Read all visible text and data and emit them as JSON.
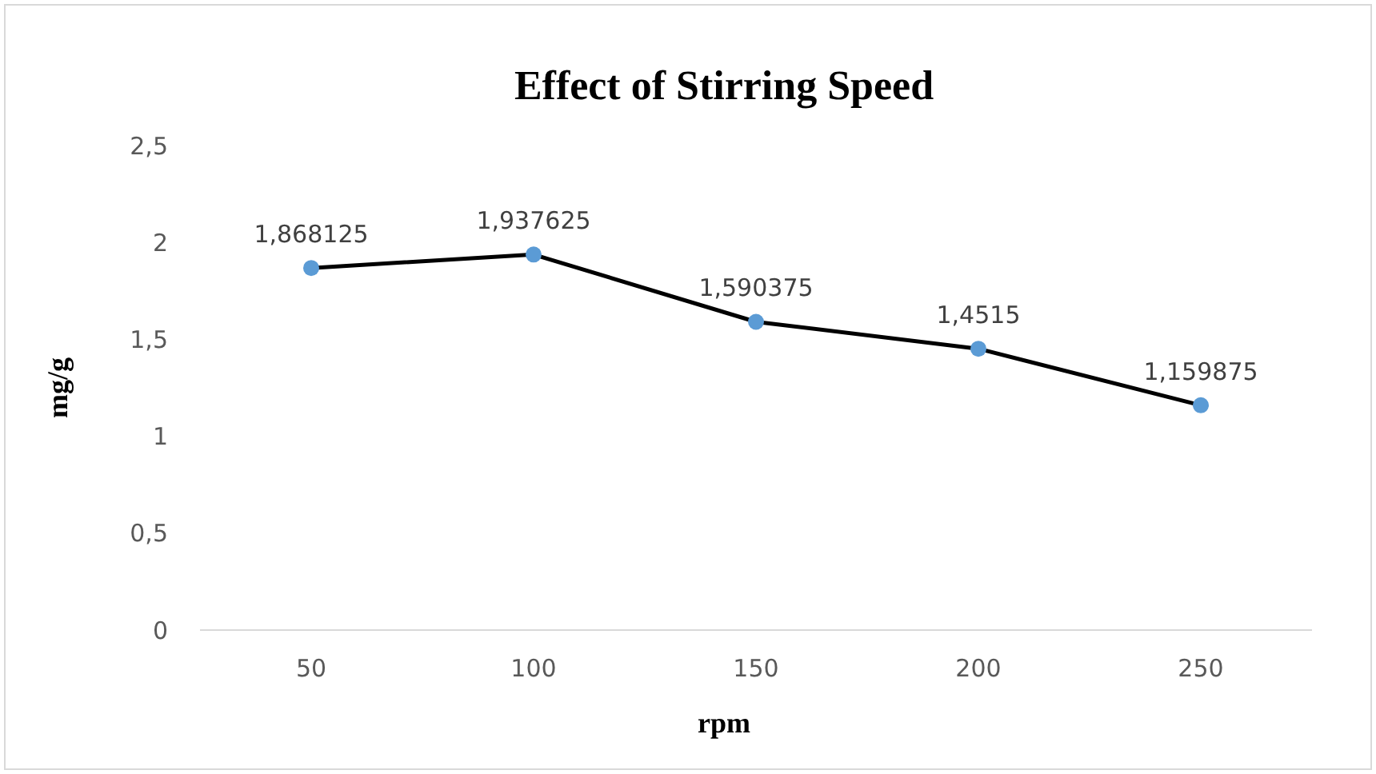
{
  "chart_data": {
    "type": "line",
    "title": "Effect of Stirring Speed",
    "xlabel": "rpm",
    "ylabel": "mg/g",
    "categories": [
      "50",
      "100",
      "150",
      "200",
      "250"
    ],
    "series": [
      {
        "color": "#5b9bd5",
        "values": [
          1.868125,
          1.937625,
          1.590375,
          1.4515,
          1.159875
        ],
        "value_labels": [
          "1,868125",
          "1,937625",
          "1,590375",
          "1,4515",
          "1,159875"
        ]
      }
    ],
    "ylim": [
      0,
      2.5
    ],
    "yticks": [
      0,
      {
        "value": 0.5,
        "label": "0,5"
      },
      1,
      {
        "value": 1.5,
        "label": "1,5"
      },
      2,
      {
        "value": 2.5,
        "label": "2,5"
      }
    ],
    "grid": false,
    "marker": "circle",
    "line_style": "solid"
  }
}
